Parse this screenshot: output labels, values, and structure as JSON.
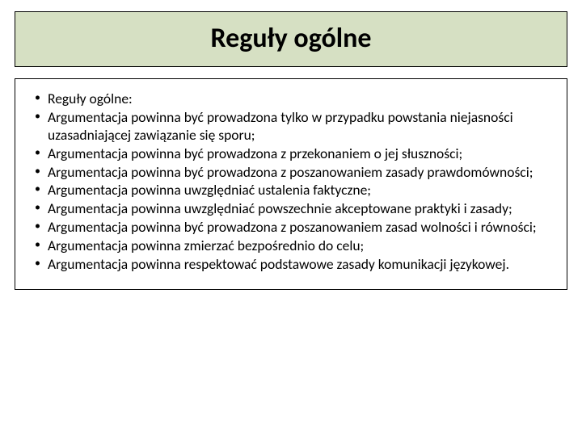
{
  "title": {
    "text": "Reguły ogólne",
    "fontsize": 34,
    "background_color": "#d6e0c3",
    "border_color": "#000000"
  },
  "content": {
    "border_color": "#000000",
    "background_color": "#ffffff",
    "bullets": [
      "Reguły ogólne:",
      "Argumentacja powinna być prowadzona tylko w przypadku powstania niejasności uzasadniającej zawiązanie się sporu;",
      "Argumentacja powinna być prowadzona z przekonaniem o jej słuszności;",
      "Argumentacja powinna być prowadzona z poszanowaniem zasady prawdomówności;",
      "Argumentacja powinna uwzględniać ustalenia faktyczne;",
      "Argumentacja powinna uwzględniać powszechnie akceptowane praktyki i zasady;",
      "Argumentacja powinna być prowadzona z poszanowaniem zasad wolności i równości;",
      "Argumentacja powinna zmierzać bezpośrednio do celu;",
      "Argumentacja powinna respektować podstawowe zasady komunikacji językowej."
    ],
    "fontsize": 17.5,
    "text_color": "#000000"
  }
}
